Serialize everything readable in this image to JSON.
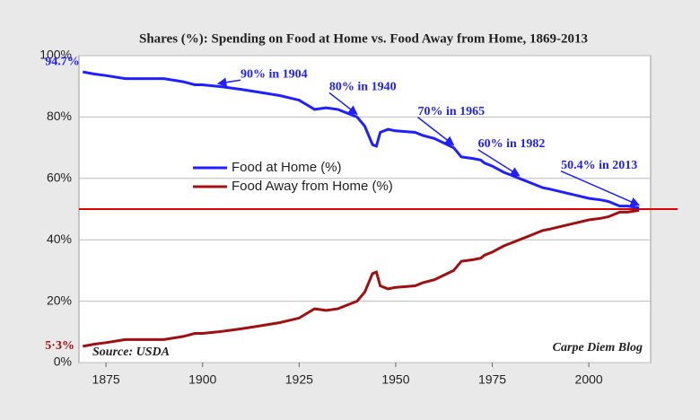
{
  "chart_data": {
    "type": "line",
    "title": "Shares (%): Spending on Food at Home vs. Food Away from Home, 1869-2013",
    "x": [
      1869,
      1872,
      1875,
      1880,
      1885,
      1890,
      1895,
      1898,
      1900,
      1904,
      1910,
      1915,
      1920,
      1925,
      1929,
      1932,
      1935,
      1938,
      1940,
      1942,
      1944,
      1945,
      1946,
      1948,
      1950,
      1955,
      1957,
      1960,
      1965,
      1967,
      1970,
      1972,
      1973,
      1975,
      1978,
      1980,
      1982,
      1985,
      1988,
      1990,
      1995,
      2000,
      2003,
      2005,
      2008,
      2010,
      2013
    ],
    "series": [
      {
        "name": "Food at Home (%)",
        "color": "#1f1fff",
        "values": [
          94.7,
          94.0,
          93.5,
          92.5,
          92.5,
          92.5,
          91.5,
          90.5,
          90.5,
          90,
          89,
          88,
          87,
          85.5,
          82.5,
          83,
          82.5,
          81,
          80,
          77,
          71,
          70.5,
          75,
          76,
          75.5,
          75,
          74,
          73,
          70,
          67,
          66.5,
          66,
          65,
          64,
          62,
          61,
          60,
          58.5,
          57,
          56.5,
          55,
          53.5,
          53,
          52.5,
          51,
          51,
          50.4
        ]
      },
      {
        "name": "Food Away from Home (%)",
        "color": "#a01010",
        "values": [
          5.3,
          6,
          6.5,
          7.5,
          7.5,
          7.5,
          8.5,
          9.5,
          9.5,
          10,
          11,
          12,
          13,
          14.5,
          17.5,
          17,
          17.5,
          19,
          20,
          23,
          29,
          29.5,
          25,
          24,
          24.5,
          25,
          26,
          27,
          30,
          33,
          33.5,
          34,
          35,
          36,
          38,
          39,
          40,
          41.5,
          43,
          43.5,
          45,
          46.5,
          47,
          47.5,
          49,
          49,
          49.6
        ]
      }
    ],
    "xlim": [
      1868,
      2016
    ],
    "xticks": [
      1875,
      1900,
      1925,
      1950,
      1975,
      2000
    ],
    "ylim": [
      0,
      100
    ],
    "yticks": [
      {
        "value": 0,
        "label": "0%"
      },
      {
        "value": 20,
        "label": "20%"
      },
      {
        "value": 40,
        "label": "40%"
      },
      {
        "value": 60,
        "label": "60%"
      },
      {
        "value": 80,
        "label": "80%"
      },
      {
        "value": 100,
        "label": "100%"
      }
    ],
    "grid": true,
    "legend": "center-left",
    "reference_line": {
      "value": 50,
      "color": "#e00000"
    },
    "annotations": [
      {
        "text": "94.7%",
        "x": 1869,
        "y": 94.7,
        "color": "#1f1fff"
      },
      {
        "text": "90% in 1904",
        "x": 1904,
        "y": 90,
        "color": "#1f1fff"
      },
      {
        "text": "80% in 1940",
        "x": 1940,
        "y": 80,
        "color": "#1f1fff"
      },
      {
        "text": "70% in 1965",
        "x": 1965,
        "y": 70,
        "color": "#1f1fff"
      },
      {
        "text": "60% in 1982",
        "x": 1982,
        "y": 60,
        "color": "#1f1fff"
      },
      {
        "text": "50.4% in 2013",
        "x": 2013,
        "y": 50.4,
        "color": "#1f1fff"
      },
      {
        "text": "5·3%",
        "x": 1869,
        "y": 5.3,
        "color": "#a01010"
      }
    ],
    "source": "Source: USDA",
    "credit": "Carpe Diem Blog"
  }
}
